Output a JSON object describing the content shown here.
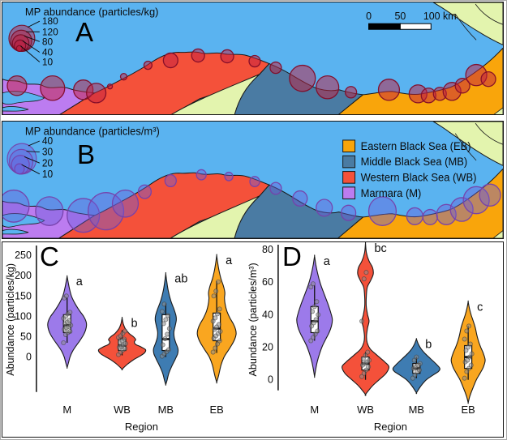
{
  "panel_a": {
    "letter": "A",
    "size_legend": {
      "title": "MP abundance (particles/kg)",
      "values": [
        "180",
        "120",
        "80",
        "40",
        "10"
      ]
    },
    "scale_bar": {
      "labels": [
        "0",
        "50",
        "100 km"
      ]
    }
  },
  "panel_b": {
    "letter": "B",
    "size_legend": {
      "title": "MP abundance (particles/m³)",
      "values": [
        "40",
        "30",
        "20",
        "10"
      ]
    },
    "region_legend": [
      {
        "key": "EB",
        "label": "Eastern Black Sea (EB)",
        "color": "#F9A50B"
      },
      {
        "key": "MB",
        "label": "Middle Black Sea (MB)",
        "color": "#4A7BA3"
      },
      {
        "key": "WB",
        "label": "Western Black Sea (WB)",
        "color": "#F4513A"
      },
      {
        "key": "M",
        "label": "Marmara (M)",
        "color": "#BC7CF0"
      }
    ]
  },
  "map": {
    "colors": {
      "sea": "#5AB3F0",
      "marmara": "#BC7CF0",
      "western_black_sea": "#F4513A",
      "middle_black_sea": "#4A7BA3",
      "eastern_black_sea": "#F9A50B",
      "other_land": "#E3F4AE",
      "outline": "#1A1A1A"
    },
    "bubbles_a": {
      "fill": "rgba(194,32,64,0.5)",
      "stroke": "rgba(130,12,40,0.95)",
      "points": [
        [
          18,
          102,
          12
        ],
        [
          62,
          105,
          15
        ],
        [
          100,
          107,
          12
        ],
        [
          116,
          111,
          12
        ],
        [
          133,
          103,
          3
        ],
        [
          150,
          91,
          4
        ],
        [
          180,
          77,
          5
        ],
        [
          208,
          71,
          9
        ],
        [
          242,
          65,
          8
        ],
        [
          278,
          66,
          8
        ],
        [
          312,
          72,
          7
        ],
        [
          338,
          80,
          7
        ],
        [
          371,
          93,
          16
        ],
        [
          402,
          104,
          14
        ],
        [
          431,
          110,
          7
        ],
        [
          478,
          107,
          13
        ],
        [
          514,
          112,
          11
        ],
        [
          527,
          114,
          9
        ],
        [
          541,
          112,
          8
        ],
        [
          556,
          109,
          11
        ],
        [
          569,
          102,
          9
        ],
        [
          586,
          89,
          13
        ],
        [
          601,
          94,
          9
        ]
      ]
    },
    "bubbles_b": {
      "fill": "rgba(104,94,220,0.42)",
      "stroke": "rgba(118,64,170,0.95)",
      "points": [
        [
          14,
          100,
          19
        ],
        [
          58,
          106,
          17
        ],
        [
          100,
          111,
          20
        ],
        [
          128,
          106,
          22
        ],
        [
          152,
          97,
          16
        ],
        [
          176,
          83,
          8
        ],
        [
          208,
          70,
          7
        ],
        [
          246,
          63,
          6
        ],
        [
          280,
          65,
          5
        ],
        [
          312,
          71,
          6
        ],
        [
          338,
          79,
          7
        ],
        [
          368,
          91,
          9
        ],
        [
          398,
          102,
          10
        ],
        [
          428,
          108,
          9
        ],
        [
          470,
          106,
          17
        ],
        [
          510,
          112,
          10
        ],
        [
          529,
          113,
          9
        ],
        [
          549,
          110,
          12
        ],
        [
          568,
          104,
          14
        ],
        [
          586,
          93,
          16
        ],
        [
          603,
          87,
          13
        ]
      ]
    }
  },
  "chart_data": [
    {
      "type": "violin",
      "panel": "C",
      "ylabel": "Abundance (particles/kg)",
      "xlabel": "Region",
      "yticks": [
        250,
        200,
        150,
        100,
        50,
        0
      ],
      "ylim": [
        -75,
        270
      ],
      "categories": [
        "M",
        "WB",
        "MB",
        "EB"
      ],
      "violins": [
        {
          "category": "M",
          "color": "#9C7AEA",
          "letter": "a",
          "max_hw": 24,
          "profile": [
            [
              198,
              0
            ],
            [
              185,
              0.05
            ],
            [
              168,
              0.12
            ],
            [
              150,
              0.22
            ],
            [
              132,
              0.4
            ],
            [
              115,
              0.62
            ],
            [
              100,
              0.85
            ],
            [
              88,
              0.97
            ],
            [
              78,
              1.0
            ],
            [
              66,
              0.95
            ],
            [
              55,
              0.85
            ],
            [
              42,
              0.68
            ],
            [
              28,
              0.47
            ],
            [
              14,
              0.28
            ],
            [
              0,
              0.15
            ],
            [
              -14,
              0.07
            ],
            [
              -26,
              0
            ]
          ],
          "box": {
            "lo": 35,
            "q1": 60,
            "med": 78,
            "q3": 104,
            "hi": 146
          },
          "points": [
            35,
            55,
            60,
            63,
            68,
            72,
            75,
            78,
            82,
            86,
            90,
            95,
            100,
            106,
            110,
            145,
            150
          ]
        },
        {
          "category": "WB",
          "color": "#F4513A",
          "letter": "b",
          "max_hw": 29,
          "profile": [
            [
              96,
              0
            ],
            [
              82,
              0.05
            ],
            [
              70,
              0.13
            ],
            [
              58,
              0.3
            ],
            [
              50,
              0.48
            ],
            [
              43,
              0.58
            ],
            [
              37,
              0.52
            ],
            [
              31,
              0.58
            ],
            [
              25,
              0.8
            ],
            [
              18,
              1.0
            ],
            [
              10,
              0.95
            ],
            [
              2,
              0.75
            ],
            [
              -7,
              0.48
            ],
            [
              -18,
              0.22
            ],
            [
              -30,
              0
            ]
          ],
          "box": {
            "lo": 4,
            "q1": 16,
            "med": 28,
            "q3": 44,
            "hi": 66
          },
          "points": [
            6,
            12,
            17,
            21,
            24,
            27,
            30,
            33,
            36,
            40,
            44,
            48,
            52,
            58,
            64
          ]
        },
        {
          "category": "MB",
          "color": "#3E7CB2",
          "letter": "ab",
          "max_hw": 21,
          "profile": [
            [
              205,
              0
            ],
            [
              185,
              0.06
            ],
            [
              162,
              0.15
            ],
            [
              138,
              0.3
            ],
            [
              118,
              0.48
            ],
            [
              102,
              0.6
            ],
            [
              90,
              0.62
            ],
            [
              76,
              0.55
            ],
            [
              62,
              0.48
            ],
            [
              48,
              0.5
            ],
            [
              34,
              0.6
            ],
            [
              20,
              0.72
            ],
            [
              8,
              0.7
            ],
            [
              -6,
              0.55
            ],
            [
              -22,
              0.36
            ],
            [
              -40,
              0.18
            ],
            [
              -58,
              0.07
            ],
            [
              -68,
              0
            ]
          ],
          "box": {
            "lo": 0,
            "q1": 16,
            "med": 44,
            "q3": 104,
            "hi": 132
          },
          "points": [
            2,
            8,
            13,
            18,
            30,
            45,
            56,
            70,
            82,
            92,
            102,
            112,
            130
          ]
        },
        {
          "category": "EB",
          "color": "#F9A620",
          "letter": "a",
          "max_hw": 24,
          "profile": [
            [
              250,
              0
            ],
            [
              232,
              0.05
            ],
            [
              212,
              0.12
            ],
            [
              192,
              0.22
            ],
            [
              174,
              0.35
            ],
            [
              158,
              0.42
            ],
            [
              144,
              0.4
            ],
            [
              128,
              0.44
            ],
            [
              112,
              0.53
            ],
            [
              96,
              0.68
            ],
            [
              82,
              0.85
            ],
            [
              68,
              0.97
            ],
            [
              56,
              1.0
            ],
            [
              44,
              0.93
            ],
            [
              30,
              0.78
            ],
            [
              15,
              0.58
            ],
            [
              0,
              0.38
            ],
            [
              -20,
              0.22
            ],
            [
              -45,
              0.1
            ],
            [
              -62,
              0
            ]
          ],
          "box": {
            "lo": 10,
            "q1": 40,
            "med": 70,
            "q3": 108,
            "hi": 186
          },
          "points": [
            12,
            22,
            32,
            40,
            46,
            52,
            58,
            63,
            68,
            74,
            80,
            88,
            96,
            106,
            118,
            150,
            162,
            185
          ]
        }
      ]
    },
    {
      "type": "violin",
      "panel": "D",
      "ylabel": "Abundance (particles/m³)",
      "xlabel": "Region",
      "yticks": [
        80,
        60,
        40,
        20,
        0
      ],
      "ylim": [
        -15,
        88
      ],
      "categories": [
        "M",
        "WB",
        "MB",
        "EB"
      ],
      "violins": [
        {
          "category": "M",
          "color": "#9C7AEA",
          "letter": "a",
          "max_hw": 22,
          "profile": [
            [
              76,
              0
            ],
            [
              71,
              0.07
            ],
            [
              65,
              0.18
            ],
            [
              59,
              0.33
            ],
            [
              53,
              0.53
            ],
            [
              47,
              0.74
            ],
            [
              41,
              0.92
            ],
            [
              37,
              1.0
            ],
            [
              33,
              0.95
            ],
            [
              29,
              0.82
            ],
            [
              25,
              0.63
            ],
            [
              21,
              0.45
            ],
            [
              16,
              0.28
            ],
            [
              11,
              0.15
            ],
            [
              6,
              0.06
            ],
            [
              2,
              0
            ]
          ],
          "box": {
            "lo": 24,
            "q1": 29,
            "med": 36,
            "q3": 45,
            "hi": 58
          },
          "points": [
            24,
            26,
            28,
            30,
            33,
            35,
            37,
            40,
            42,
            45,
            48,
            57,
            59
          ]
        },
        {
          "category": "WB",
          "color": "#F4513A",
          "letter": "bc",
          "max_hw": 29,
          "profile": [
            [
              84,
              0
            ],
            [
              78,
              0.04
            ],
            [
              73,
              0.15
            ],
            [
              69,
              0.3
            ],
            [
              65,
              0.33
            ],
            [
              61,
              0.22
            ],
            [
              57,
              0.08
            ],
            [
              51,
              0.035
            ],
            [
              45,
              0.035
            ],
            [
              40,
              0.09
            ],
            [
              36,
              0.15
            ],
            [
              32,
              0.09
            ],
            [
              27,
              0.045
            ],
            [
              23,
              0.07
            ],
            [
              19,
              0.2
            ],
            [
              15,
              0.5
            ],
            [
              11,
              0.82
            ],
            [
              8,
              1.0
            ],
            [
              4,
              0.88
            ],
            [
              0,
              0.58
            ],
            [
              -4,
              0.28
            ],
            [
              -9,
              0
            ]
          ],
          "box": {
            "lo": 0,
            "q1": 6,
            "med": 10,
            "q3": 14,
            "hi": 17
          },
          "points": [
            2,
            4,
            6,
            8,
            9,
            10,
            11,
            12,
            13,
            15,
            17,
            36,
            62,
            66
          ]
        },
        {
          "category": "MB",
          "color": "#3E7CB2",
          "letter": "b",
          "max_hw": 29,
          "profile": [
            [
              25,
              0
            ],
            [
              22,
              0.08
            ],
            [
              19,
              0.2
            ],
            [
              16,
              0.38
            ],
            [
              13,
              0.6
            ],
            [
              10,
              0.82
            ],
            [
              7,
              1.0
            ],
            [
              5,
              0.93
            ],
            [
              3,
              0.72
            ],
            [
              0,
              0.42
            ],
            [
              -4,
              0.18
            ],
            [
              -8,
              0
            ]
          ],
          "box": {
            "lo": 1,
            "q1": 4,
            "med": 7,
            "q3": 10,
            "hi": 14
          },
          "points": [
            1,
            3,
            5,
            6,
            7,
            8,
            9,
            10,
            12,
            14
          ]
        },
        {
          "category": "EB",
          "color": "#F9A620",
          "letter": "c",
          "max_hw": 21,
          "profile": [
            [
              48,
              0
            ],
            [
              44,
              0.07
            ],
            [
              40,
              0.17
            ],
            [
              36,
              0.3
            ],
            [
              32,
              0.42
            ],
            [
              28,
              0.5
            ],
            [
              24,
              0.6
            ],
            [
              20,
              0.74
            ],
            [
              16,
              0.9
            ],
            [
              12,
              1.0
            ],
            [
              8,
              0.9
            ],
            [
              4,
              0.7
            ],
            [
              0,
              0.48
            ],
            [
              -5,
              0.28
            ],
            [
              -10,
              0.1
            ],
            [
              -14,
              0
            ]
          ],
          "box": {
            "lo": 0,
            "q1": 7,
            "med": 14,
            "q3": 21,
            "hi": 33
          },
          "points": [
            1,
            5,
            7,
            9,
            11,
            12,
            14,
            16,
            18,
            20,
            22,
            25,
            30,
            33
          ]
        }
      ]
    }
  ]
}
